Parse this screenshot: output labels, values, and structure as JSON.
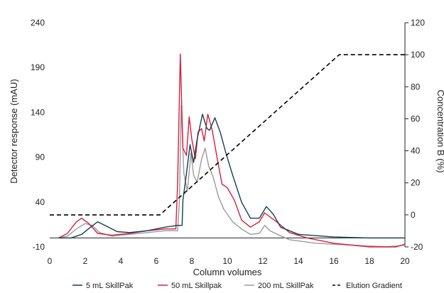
{
  "chart_data": {
    "type": "line",
    "title": "",
    "xlabel": "Column volumes",
    "ylabel": "Detector response (mAU)",
    "y2label": "Concentration B (%)",
    "xlim": [
      0,
      20
    ],
    "ylim": [
      -10,
      240
    ],
    "y2lim": [
      -20,
      120
    ],
    "xticks": [
      "0",
      "2",
      "4",
      "6",
      "8",
      "10",
      "12",
      "14",
      "16",
      "18",
      "20"
    ],
    "yticks": [
      "-10",
      "40",
      "90",
      "140",
      "190",
      "240"
    ],
    "y2ticks": [
      "-20",
      "0",
      "20",
      "40",
      "60",
      "80",
      "100",
      "120"
    ],
    "grid": false,
    "legend_position": "bottom",
    "series": [
      {
        "name": "5 mL SkillPak",
        "color": "#123f52",
        "axis": "left",
        "dash": "solid",
        "points": [
          [
            0.5,
            0
          ],
          [
            1.2,
            0
          ],
          [
            1.8,
            4
          ],
          [
            2.3,
            12
          ],
          [
            2.7,
            18
          ],
          [
            3.2,
            13
          ],
          [
            3.8,
            7
          ],
          [
            4.5,
            6
          ],
          [
            5.5,
            8
          ],
          [
            6.5,
            12
          ],
          [
            7.2,
            14
          ],
          [
            7.45,
            14
          ],
          [
            7.5,
            42
          ],
          [
            7.7,
            72
          ],
          [
            7.9,
            104
          ],
          [
            8.1,
            84
          ],
          [
            8.3,
            110
          ],
          [
            8.6,
            138
          ],
          [
            8.85,
            122
          ],
          [
            9.0,
            120
          ],
          [
            9.3,
            134
          ],
          [
            9.6,
            118
          ],
          [
            9.9,
            96
          ],
          [
            10.3,
            70
          ],
          [
            10.8,
            40
          ],
          [
            11.3,
            22
          ],
          [
            11.8,
            22
          ],
          [
            12.2,
            35
          ],
          [
            12.6,
            26
          ],
          [
            13.0,
            12
          ],
          [
            14.0,
            4
          ],
          [
            16.0,
            1
          ],
          [
            18.0,
            0
          ],
          [
            20.0,
            0
          ]
        ]
      },
      {
        "name": "50 mL Skillpak",
        "color": "#d81e3c",
        "axis": "left",
        "dash": "solid",
        "points": [
          [
            0.5,
            0
          ],
          [
            1.0,
            5
          ],
          [
            1.5,
            18
          ],
          [
            1.8,
            22
          ],
          [
            2.2,
            16
          ],
          [
            2.7,
            5
          ],
          [
            3.5,
            3
          ],
          [
            4.5,
            5
          ],
          [
            5.5,
            8
          ],
          [
            6.5,
            10
          ],
          [
            7.1,
            10
          ],
          [
            7.2,
            60
          ],
          [
            7.35,
            205
          ],
          [
            7.5,
            100
          ],
          [
            7.7,
            92
          ],
          [
            7.85,
            135
          ],
          [
            8.0,
            110
          ],
          [
            8.2,
            88
          ],
          [
            8.35,
            118
          ],
          [
            8.55,
            122
          ],
          [
            8.7,
            108
          ],
          [
            8.9,
            138
          ],
          [
            9.15,
            120
          ],
          [
            9.4,
            92
          ],
          [
            9.7,
            60
          ],
          [
            10.0,
            56
          ],
          [
            10.4,
            42
          ],
          [
            10.8,
            20
          ],
          [
            11.3,
            12
          ],
          [
            11.8,
            18
          ],
          [
            12.1,
            28
          ],
          [
            12.5,
            22
          ],
          [
            12.9,
            16
          ],
          [
            13.5,
            6
          ],
          [
            14.5,
            0
          ],
          [
            16.0,
            -6
          ],
          [
            18.0,
            -10
          ],
          [
            19.5,
            -10
          ],
          [
            20.0,
            -7
          ]
        ]
      },
      {
        "name": "200 mL SkillPak",
        "color": "#9a9a9a",
        "axis": "left",
        "dash": "solid",
        "points": [
          [
            0.5,
            0
          ],
          [
            1.0,
            2
          ],
          [
            1.5,
            10
          ],
          [
            2.0,
            16
          ],
          [
            2.4,
            14
          ],
          [
            2.8,
            6
          ],
          [
            3.5,
            2
          ],
          [
            4.5,
            4
          ],
          [
            5.5,
            6
          ],
          [
            6.5,
            8
          ],
          [
            7.2,
            8
          ],
          [
            7.3,
            40
          ],
          [
            7.4,
            148
          ],
          [
            7.55,
            72
          ],
          [
            7.75,
            52
          ],
          [
            7.95,
            95
          ],
          [
            8.1,
            70
          ],
          [
            8.3,
            62
          ],
          [
            8.55,
            88
          ],
          [
            8.75,
            100
          ],
          [
            8.95,
            80
          ],
          [
            9.2,
            68
          ],
          [
            9.5,
            46
          ],
          [
            9.8,
            32
          ],
          [
            10.3,
            18
          ],
          [
            10.8,
            10
          ],
          [
            11.3,
            4
          ],
          [
            11.8,
            5
          ],
          [
            12.1,
            14
          ],
          [
            12.4,
            8
          ],
          [
            12.8,
            4
          ],
          [
            13.5,
            -2
          ],
          [
            15.0,
            -6
          ],
          [
            17.0,
            -8
          ],
          [
            19.0,
            -10
          ],
          [
            20.0,
            -8
          ]
        ]
      },
      {
        "name": "Elution Gradient",
        "color": "#000000",
        "axis": "right",
        "dash": "dashed",
        "points": [
          [
            0,
            0
          ],
          [
            6.2,
            0
          ],
          [
            16.3,
            100
          ],
          [
            20,
            100
          ]
        ]
      }
    ]
  }
}
